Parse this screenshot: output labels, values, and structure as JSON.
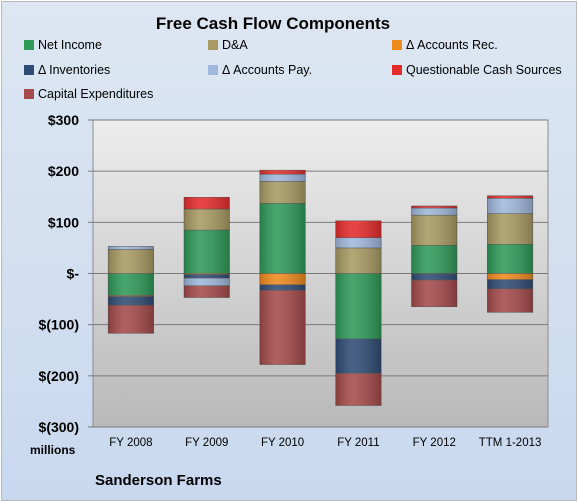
{
  "title": "Free Cash Flow Components",
  "units": "millions",
  "company": "Sanderson Farms",
  "colors": {
    "Net Income": "#2e9a58",
    "D&A": "#a89a63",
    "Δ Accounts Rec.": "#ef8a1e",
    "Δ Inventories": "#2f4c74",
    "Δ Accounts Pay.": "#9fb8dc",
    "Questionable Cash Sources": "#e52c2c",
    "Capital Expenditures": "#a54a4a"
  },
  "chart_data": {
    "type": "bar",
    "stacked": true,
    "title": "Free Cash Flow Components",
    "ylabel": "millions",
    "ylim": [
      -300,
      300
    ],
    "yticks": [
      300,
      200,
      100,
      0,
      -100,
      -200,
      -300
    ],
    "ytick_labels": [
      "$300",
      "$200",
      "$100",
      "$-",
      "$(100)",
      "$(200)",
      "$(300)"
    ],
    "grid": true,
    "legend_position": "top",
    "categories": [
      "FY 2008",
      "FY 2009",
      "FY 2010",
      "FY 2011",
      "FY 2012",
      "TTM 1-2013"
    ],
    "series": [
      {
        "name": "Net Income",
        "values": [
          -43,
          85,
          137,
          -128,
          55,
          57
        ]
      },
      {
        "name": "D&A",
        "values": [
          47,
          41,
          43,
          50,
          59,
          60
        ]
      },
      {
        "name": "Δ Accounts Rec.",
        "values": [
          -2,
          -2,
          -22,
          0,
          -1,
          -12
        ]
      },
      {
        "name": "Δ Inventories",
        "values": [
          -17,
          -7,
          -11,
          -67,
          -12,
          -18
        ]
      },
      {
        "name": "Δ Accounts Pay.",
        "values": [
          6,
          -15,
          14,
          20,
          14,
          30
        ]
      },
      {
        "name": "Questionable Cash Sources",
        "values": [
          0,
          23,
          8,
          33,
          4,
          5
        ]
      },
      {
        "name": "Capital Expenditures",
        "values": [
          -55,
          -23,
          -145,
          -63,
          -52,
          -46
        ]
      }
    ]
  }
}
